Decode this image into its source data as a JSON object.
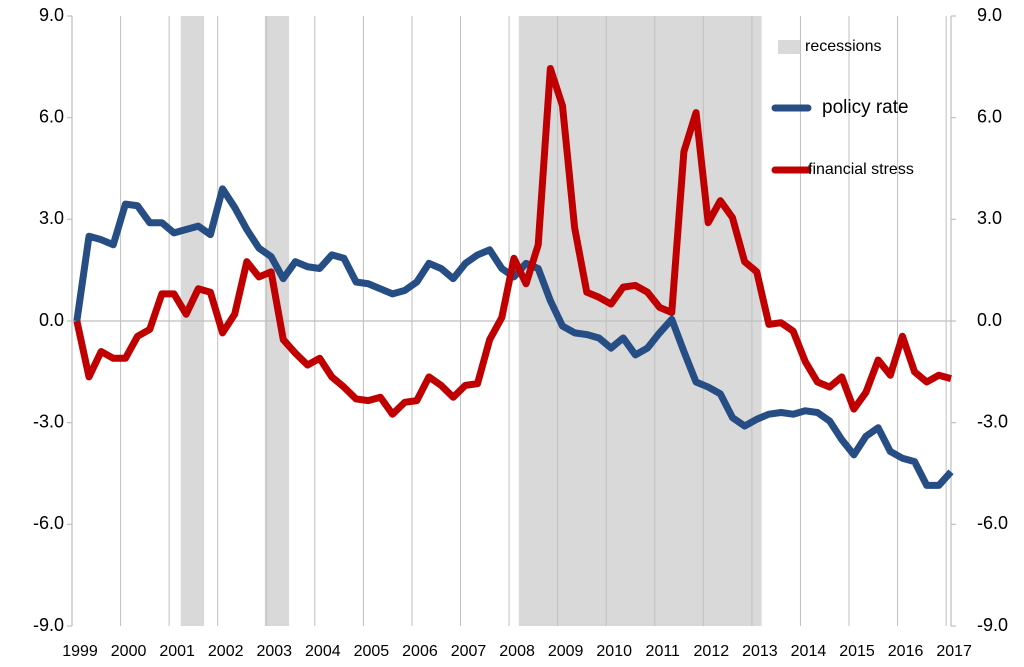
{
  "chart_data": {
    "type": "line",
    "x": [
      1999.1,
      1999.35,
      1999.6,
      1999.85,
      2000.1,
      2000.35,
      2000.6,
      2000.85,
      2001.1,
      2001.35,
      2001.6,
      2001.85,
      2002.1,
      2002.35,
      2002.6,
      2002.85,
      2003.1,
      2003.35,
      2003.6,
      2003.85,
      2004.1,
      2004.35,
      2004.6,
      2004.85,
      2005.1,
      2005.35,
      2005.6,
      2005.85,
      2006.1,
      2006.35,
      2006.6,
      2006.85,
      2007.1,
      2007.35,
      2007.6,
      2007.85,
      2008.1,
      2008.35,
      2008.6,
      2008.85,
      2009.1,
      2009.35,
      2009.6,
      2009.85,
      2010.1,
      2010.35,
      2010.6,
      2010.85,
      2011.1,
      2011.35,
      2011.6,
      2011.85,
      2012.1,
      2012.35,
      2012.6,
      2012.85,
      2013.1,
      2013.35,
      2013.6,
      2013.85,
      2014.1,
      2014.35,
      2014.6,
      2014.85,
      2015.1,
      2015.35,
      2015.6,
      2015.85,
      2016.1,
      2016.35,
      2016.6,
      2016.85,
      2017.1
    ],
    "series": [
      {
        "name": "policy rate",
        "color": "#264d84",
        "values": [
          0,
          2.5,
          2.4,
          2.25,
          3.45,
          3.4,
          2.9,
          2.9,
          2.6,
          2.7,
          2.8,
          2.55,
          3.9,
          3.35,
          2.7,
          2.15,
          1.9,
          1.25,
          1.75,
          1.6,
          1.55,
          1.95,
          1.85,
          1.15,
          1.1,
          0.95,
          0.8,
          0.9,
          1.15,
          1.7,
          1.55,
          1.25,
          1.7,
          1.95,
          2.1,
          1.55,
          1.3,
          1.7,
          1.55,
          0.6,
          -0.15,
          -0.35,
          -0.4,
          -0.5,
          -0.8,
          -0.5,
          -1.0,
          -0.8,
          -0.35,
          0.05,
          -0.9,
          -1.8,
          -1.95,
          -2.15,
          -2.85,
          -3.1,
          -2.9,
          -2.75,
          -2.7,
          -2.75,
          -2.65,
          -2.7,
          -2.95,
          -3.5,
          -3.95,
          -3.4,
          -3.15,
          -3.85,
          -4.05,
          -4.15,
          -4.85,
          -4.85,
          -4.45
        ]
      },
      {
        "name": "financial stress",
        "color": "#c00000",
        "values": [
          0,
          -1.65,
          -0.9,
          -1.1,
          -1.1,
          -0.45,
          -0.25,
          0.8,
          0.8,
          0.2,
          0.95,
          0.85,
          -0.35,
          0.2,
          1.75,
          1.3,
          1.45,
          -0.55,
          -0.95,
          -1.3,
          -1.1,
          -1.65,
          -1.95,
          -2.3,
          -2.35,
          -2.25,
          -2.75,
          -2.4,
          -2.35,
          -1.65,
          -1.9,
          -2.25,
          -1.9,
          -1.85,
          -0.55,
          0.1,
          1.85,
          1.1,
          2.25,
          7.45,
          6.35,
          2.75,
          0.85,
          0.7,
          0.5,
          1.0,
          1.05,
          0.85,
          0.4,
          0.25,
          5.0,
          6.15,
          2.9,
          3.55,
          3.05,
          1.75,
          1.45,
          -0.1,
          -0.05,
          -0.3,
          -1.2,
          -1.8,
          -1.95,
          -1.65,
          -2.6,
          -2.1,
          -1.15,
          -1.6,
          -0.45,
          -1.5,
          -1.8,
          -1.6,
          -1.7
        ]
      }
    ],
    "recession_label": "recessions",
    "recession_color": "#d9d9d9",
    "recessions": [
      [
        2001.24,
        2001.72
      ],
      [
        2002.97,
        2003.47
      ],
      [
        2008.2,
        2013.2
      ]
    ],
    "xlim": [
      1999,
      2017.1
    ],
    "xticks": [
      1999,
      2000,
      2001,
      2002,
      2003,
      2004,
      2005,
      2006,
      2007,
      2008,
      2009,
      2010,
      2011,
      2012,
      2013,
      2014,
      2015,
      2016,
      2017
    ],
    "ylim": [
      -9,
      9
    ],
    "yticks": [
      {
        "value": -9,
        "label": "-9.0"
      },
      {
        "value": -6,
        "label": "-6.0"
      },
      {
        "value": -3,
        "label": "-3.0"
      },
      {
        "value": 0,
        "label": "0.0"
      },
      {
        "value": 3,
        "label": "3.0"
      },
      {
        "value": 6,
        "label": "6.0"
      },
      {
        "value": 9,
        "label": "9.0"
      }
    ],
    "y2lim": [
      -9,
      9
    ],
    "y2ticks": [
      {
        "value": -9,
        "label": "-9.0"
      },
      {
        "value": -6,
        "label": "-6.0"
      },
      {
        "value": -3,
        "label": "-3.0"
      },
      {
        "value": 0,
        "label": "0.0"
      },
      {
        "value": 3,
        "label": "3.0"
      },
      {
        "value": 6,
        "label": "6.0"
      },
      {
        "value": 9,
        "label": "9.0"
      }
    ],
    "grid": true
  }
}
